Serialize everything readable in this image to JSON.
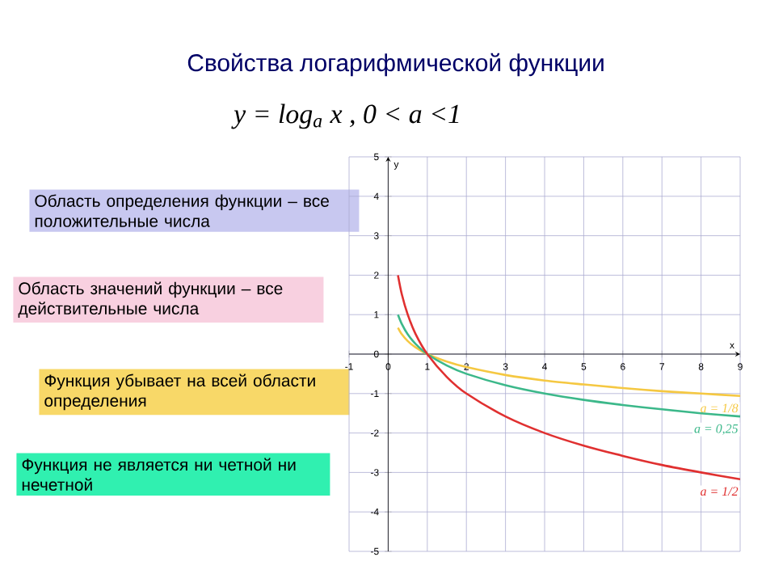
{
  "chart_data": {
    "type": "line",
    "title": "Свойства логарифмической функции",
    "subtitle": "y = log$_{a}$ x ,  0 < a <1",
    "xlabel": "x",
    "ylabel": "y",
    "xlim": [
      -1,
      9
    ],
    "ylim": [
      -5,
      5
    ],
    "xticks": [
      -1,
      0,
      1,
      2,
      3,
      4,
      5,
      6,
      7,
      8,
      9
    ],
    "yticks": [
      -5,
      -4,
      -3,
      -2,
      -1,
      0,
      1,
      2,
      3,
      4,
      5
    ],
    "grid": true,
    "marker": "none",
    "x": [
      0.25,
      0.35,
      0.5,
      0.7,
      1,
      1.5,
      2,
      3,
      4,
      5,
      6,
      7,
      8,
      9
    ],
    "series": [
      {
        "name": "a = 1/8",
        "color": "#f5c842",
        "values": [
          0.67,
          0.5,
          0.33,
          0.17,
          0,
          -0.19,
          -0.33,
          -0.53,
          -0.67,
          -0.77,
          -0.86,
          -0.94,
          -1,
          -1.06
        ]
      },
      {
        "name": "a = 0,25",
        "color": "#3cb88a",
        "values": [
          1,
          0.76,
          0.5,
          0.26,
          0,
          -0.29,
          -0.5,
          -0.79,
          -1,
          -1.16,
          -1.29,
          -1.4,
          -1.5,
          -1.58
        ]
      },
      {
        "name": "a = 1/2",
        "color": "#e03030",
        "values": [
          2,
          1.51,
          1,
          0.51,
          0,
          -0.58,
          -1,
          -1.58,
          -2,
          -2.32,
          -2.58,
          -2.81,
          -3,
          -3.17
        ]
      }
    ],
    "annotations": [
      "Область определения функции – все положительные числа",
      "Область значений функции – все действительные числа",
      "Функция убывает на всей области определения",
      "Функция не является ни четной ни нечетной"
    ]
  }
}
